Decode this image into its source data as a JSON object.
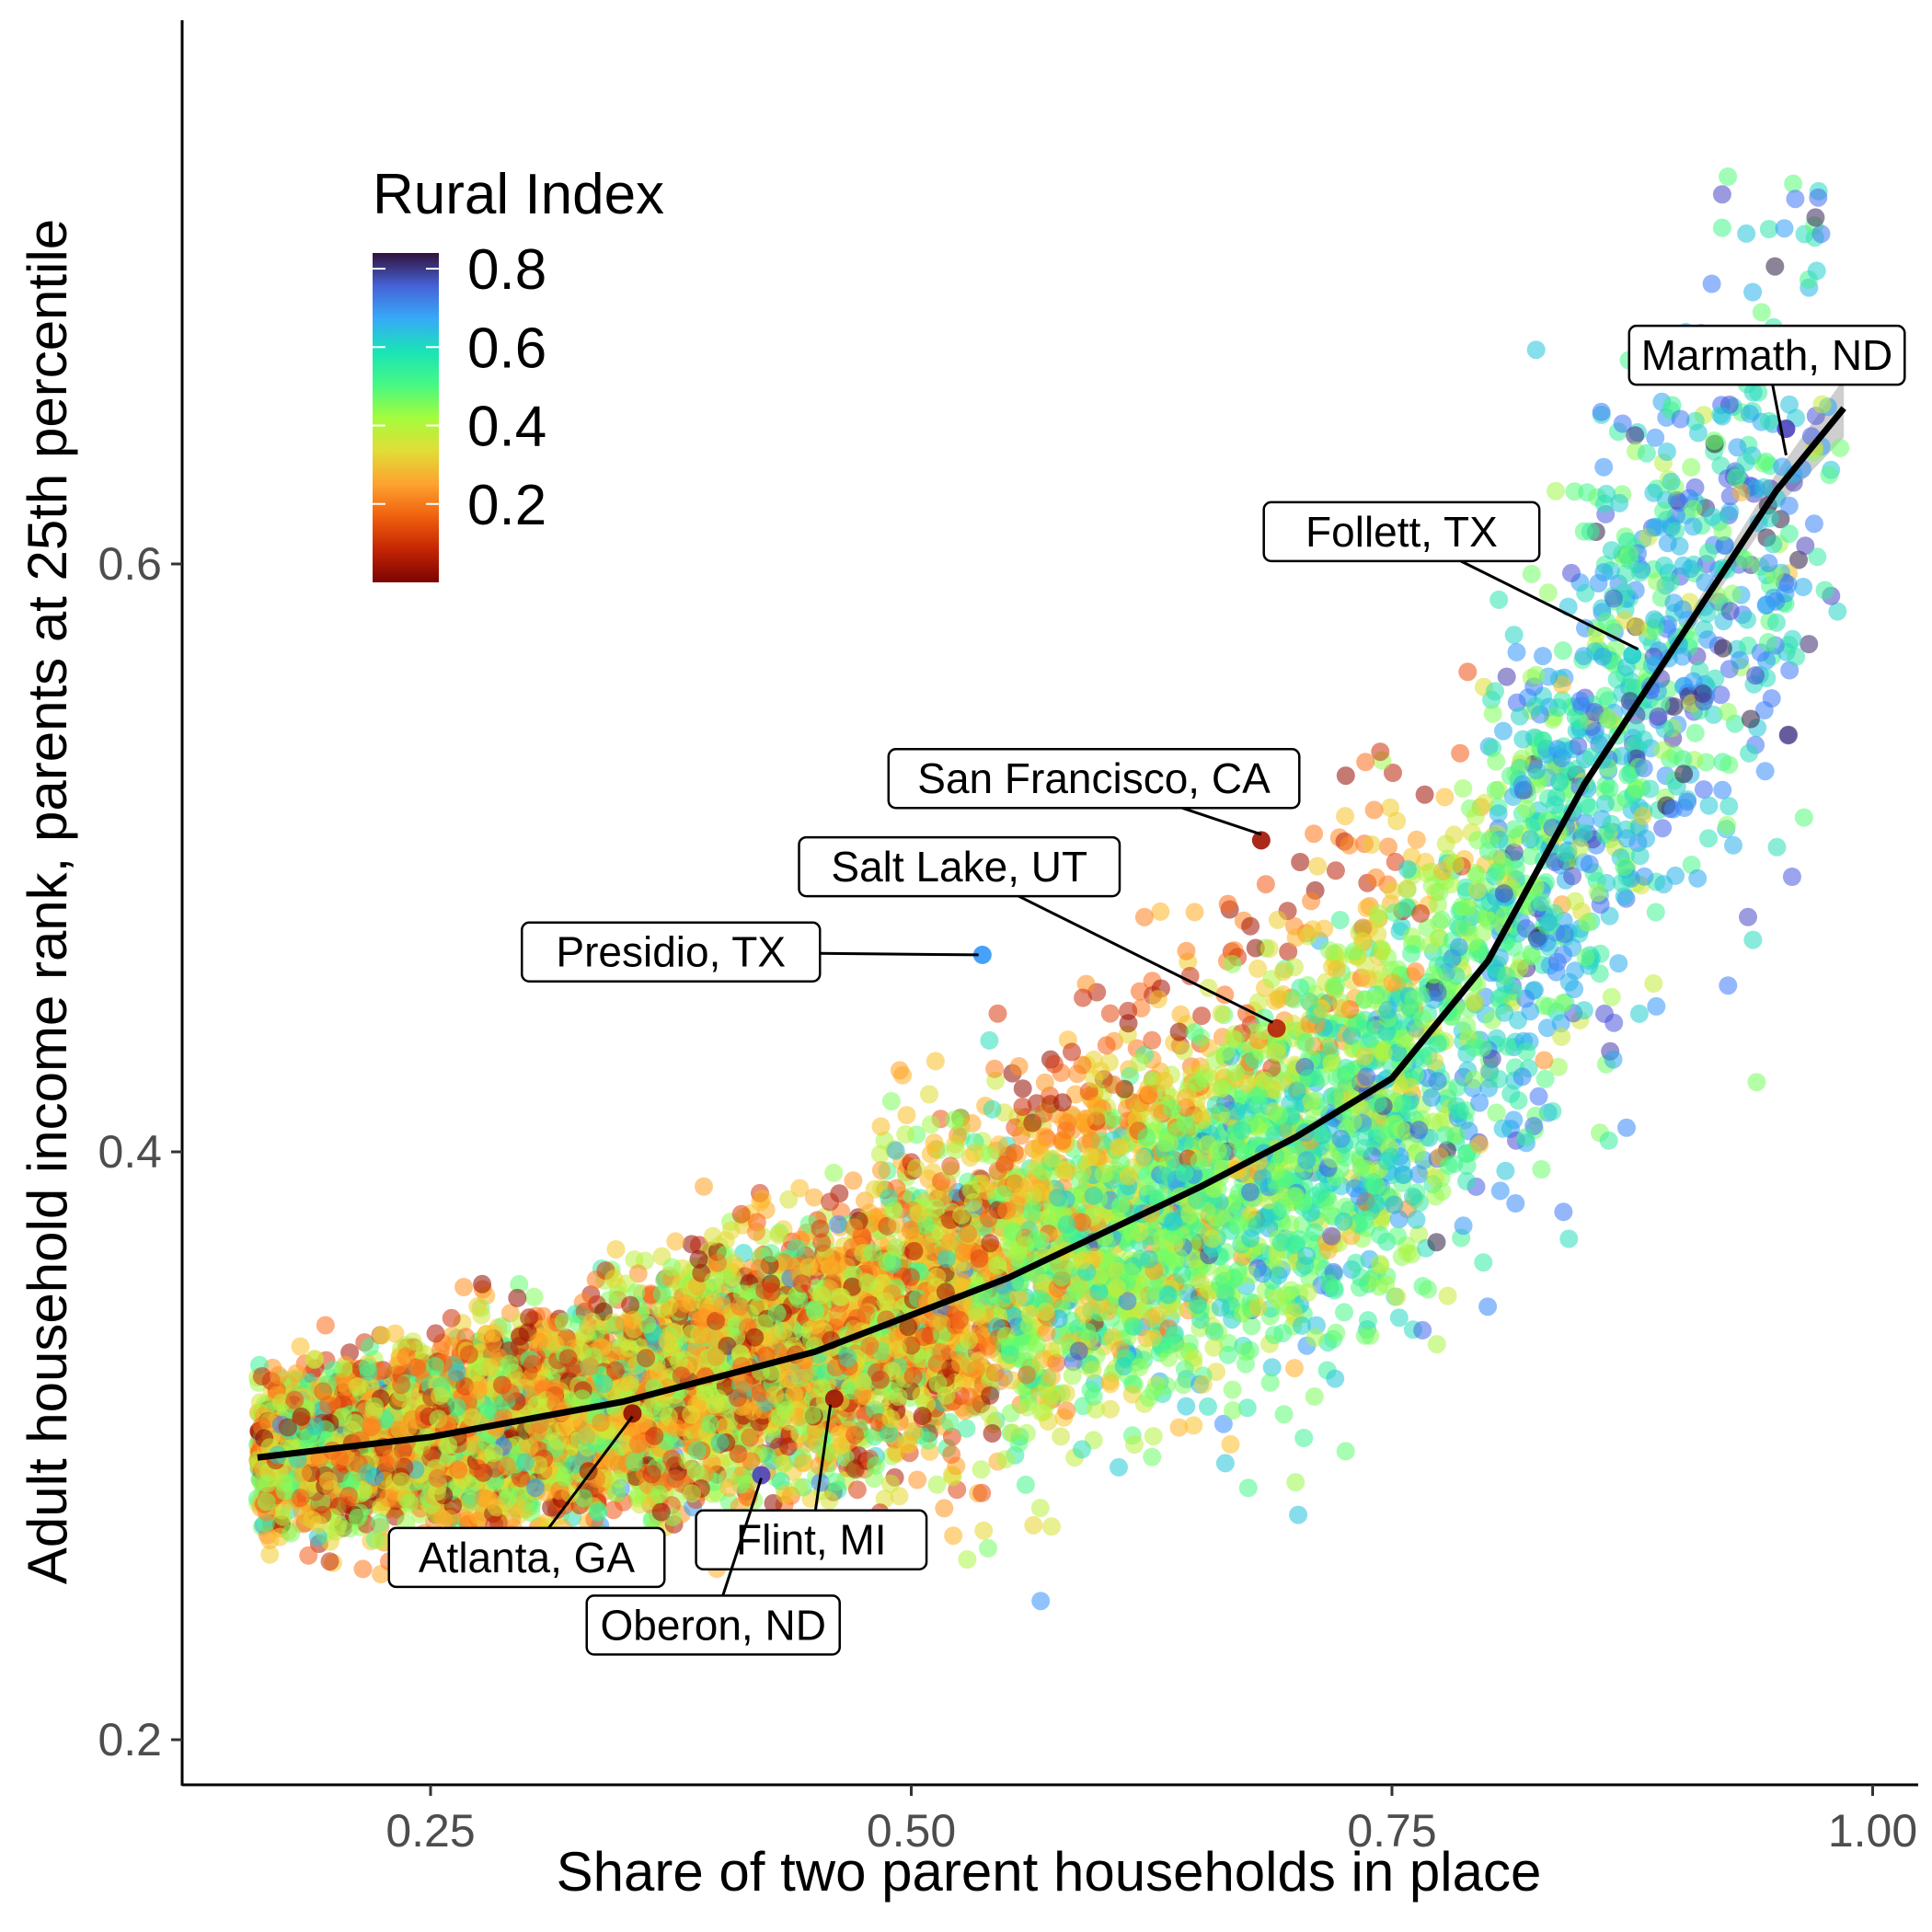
{
  "chart_data": {
    "type": "scatter",
    "title": "",
    "xlabel": "Share of two parent households in place",
    "ylabel": "Adult household income rank, parents at 25th percentile",
    "xlim": [
      0.12,
      1.03
    ],
    "ylim": [
      0.185,
      0.77
    ],
    "x_ticks": [
      0.25,
      0.5,
      0.75,
      1.0
    ],
    "x_tick_labels": [
      "0.25",
      "0.50",
      "0.75",
      "1.00"
    ],
    "y_ticks": [
      0.2,
      0.4,
      0.6
    ],
    "y_tick_labels": [
      "0.2",
      "0.4",
      "0.6"
    ],
    "grid": false,
    "colorbar": {
      "title": "Rural Index",
      "ticks": [
        0.2,
        0.4,
        0.6,
        0.8
      ],
      "tick_labels": [
        "0.2",
        "0.4",
        "0.6",
        "0.8"
      ],
      "range": [
        0.0,
        0.84
      ],
      "colormap": "turbo",
      "placement": "top-left"
    },
    "smooth_line": {
      "color": "#000000",
      "ci_color": "#bdbdbd",
      "x": [
        0.16,
        0.25,
        0.35,
        0.45,
        0.55,
        0.65,
        0.7,
        0.75,
        0.8,
        0.85,
        0.9,
        0.95,
        0.985
      ],
      "y": [
        0.296,
        0.303,
        0.315,
        0.332,
        0.357,
        0.388,
        0.405,
        0.425,
        0.465,
        0.525,
        0.575,
        0.625,
        0.653
      ],
      "lower": [
        0.281,
        0.299,
        0.312,
        0.33,
        0.355,
        0.386,
        0.403,
        0.423,
        0.463,
        0.523,
        0.572,
        0.619,
        0.643
      ],
      "upper": [
        0.311,
        0.307,
        0.318,
        0.334,
        0.359,
        0.39,
        0.407,
        0.427,
        0.467,
        0.527,
        0.578,
        0.631,
        0.663
      ]
    },
    "annotations": [
      {
        "label": "Marmath, ND",
        "x": 0.955,
        "y": 0.637,
        "box_x": 0.945,
        "box_y": 0.671
      },
      {
        "label": "Follett, TX",
        "x": 0.878,
        "y": 0.571,
        "box_x": 0.755,
        "box_y": 0.611
      },
      {
        "label": "San Francisco, CA",
        "x": 0.682,
        "y": 0.508,
        "box_x": 0.595,
        "box_y": 0.527
      },
      {
        "label": "Salt Lake, UT",
        "x": 0.688,
        "y": 0.444,
        "box_x": 0.525,
        "box_y": 0.497
      },
      {
        "label": "Presidio, TX",
        "x": 0.535,
        "y": 0.467,
        "box_x": 0.375,
        "box_y": 0.468
      },
      {
        "label": "Atlanta, GA",
        "x": 0.355,
        "y": 0.31,
        "box_x": 0.3,
        "box_y": 0.262
      },
      {
        "label": "Flint, MI",
        "x": 0.458,
        "y": 0.314,
        "box_x": 0.448,
        "box_y": 0.268
      },
      {
        "label": "Oberon, ND",
        "x": 0.422,
        "y": 0.289,
        "box_x": 0.397,
        "box_y": 0.239
      }
    ],
    "highlighted_points": [
      {
        "name": "Marmath, ND",
        "x": 0.955,
        "y": 0.646,
        "rural": 0.78
      },
      {
        "name": "Follett, TX",
        "x": 0.875,
        "y": 0.569,
        "rural": 0.6
      },
      {
        "name": "San Francisco, CA",
        "x": 0.682,
        "y": 0.506,
        "rural": 0.05
      },
      {
        "name": "Salt Lake, UT",
        "x": 0.69,
        "y": 0.442,
        "rural": 0.08
      },
      {
        "name": "Presidio, TX",
        "x": 0.537,
        "y": 0.467,
        "rural": 0.68
      },
      {
        "name": "Atlanta, GA",
        "x": 0.355,
        "y": 0.311,
        "rural": 0.02
      },
      {
        "name": "Flint, MI",
        "x": 0.46,
        "y": 0.316,
        "rural": 0.05
      },
      {
        "name": "Oberon, ND",
        "x": 0.422,
        "y": 0.29,
        "rural": 0.78
      }
    ],
    "scatter": {
      "count": 9000,
      "point_opacity": 0.55,
      "x_range": [
        0.16,
        0.985
      ],
      "y_range": [
        0.21,
        0.75
      ],
      "bands": [
        {
          "x": 0.16,
          "rural": 0.4
        },
        {
          "x": 0.5,
          "rural": 0.4
        },
        {
          "x": 0.75,
          "rural": 0.5
        },
        {
          "x": 0.9,
          "rural": 0.62
        },
        {
          "x": 1.0,
          "rural": 0.68
        }
      ]
    }
  }
}
